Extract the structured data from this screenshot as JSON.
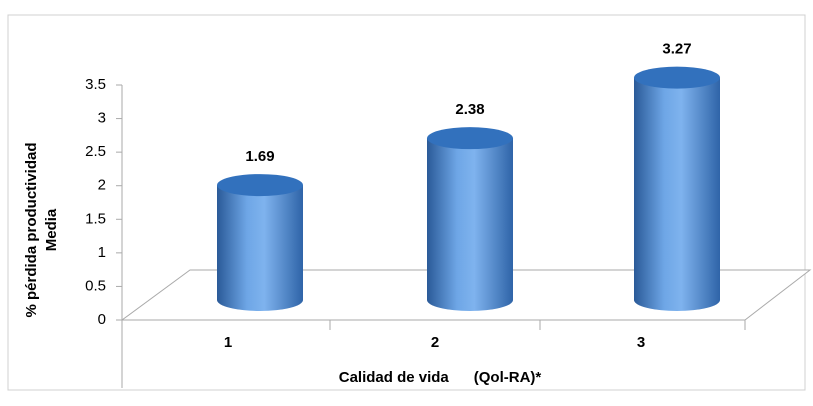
{
  "chart_data": {
    "type": "bar",
    "style": "cylinder-3d",
    "y_label": [
      "% pérdida productividad",
      "Media"
    ],
    "x_label": "Calidad de vida      (Qol-RA)*",
    "categories": [
      "1",
      "2",
      "3"
    ],
    "values": [
      1.69,
      2.38,
      3.27
    ],
    "color": "#4a86d0",
    "ylim": [
      0,
      3.5
    ],
    "yticks": [
      0,
      0.5,
      1,
      1.5,
      2,
      2.5,
      3,
      3.5
    ]
  }
}
